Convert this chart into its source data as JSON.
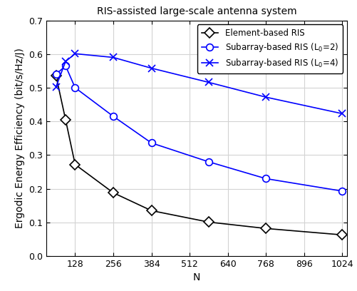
{
  "title": "RIS-assisted large-scale antenna system",
  "xlabel": "N",
  "ylabel": "Ergodic Energy Efficiency (bit/s/Hz/J)",
  "xlim": [
    32,
    1024
  ],
  "ylim": [
    0,
    0.7
  ],
  "xticks": [
    128,
    256,
    384,
    512,
    640,
    768,
    896,
    1024
  ],
  "yticks": [
    0.0,
    0.1,
    0.2,
    0.3,
    0.4,
    0.5,
    0.6,
    0.7
  ],
  "series": [
    {
      "label": "Element-based RIS",
      "x": [
        64,
        96,
        128,
        256,
        384,
        576,
        768,
        1024
      ],
      "y": [
        0.535,
        0.405,
        0.272,
        0.188,
        0.135,
        0.101,
        0.082,
        0.063
      ],
      "color": "black",
      "marker": "D",
      "markersize": 7,
      "linewidth": 1.2
    },
    {
      "label": "Subarray-based RIS (L$_0$=2)",
      "x": [
        64,
        96,
        128,
        256,
        384,
        576,
        768,
        1024
      ],
      "y": [
        0.54,
        0.565,
        0.5,
        0.415,
        0.336,
        0.28,
        0.23,
        0.193
      ],
      "color": "blue",
      "marker": "o",
      "markersize": 7,
      "linewidth": 1.2
    },
    {
      "label": "Subarray-based RIS (L$_0$=4)",
      "x": [
        64,
        96,
        128,
        256,
        384,
        576,
        768,
        1024
      ],
      "y": [
        0.503,
        0.578,
        0.601,
        0.59,
        0.558,
        0.516,
        0.472,
        0.423
      ],
      "color": "blue",
      "marker": "x",
      "markersize": 7,
      "linewidth": 1.2
    }
  ],
  "legend_loc": "upper right",
  "grid": true,
  "facecolor": "#ffffff",
  "title_fontsize": 10,
  "label_fontsize": 10,
  "tick_fontsize": 9,
  "legend_fontsize": 8.5
}
